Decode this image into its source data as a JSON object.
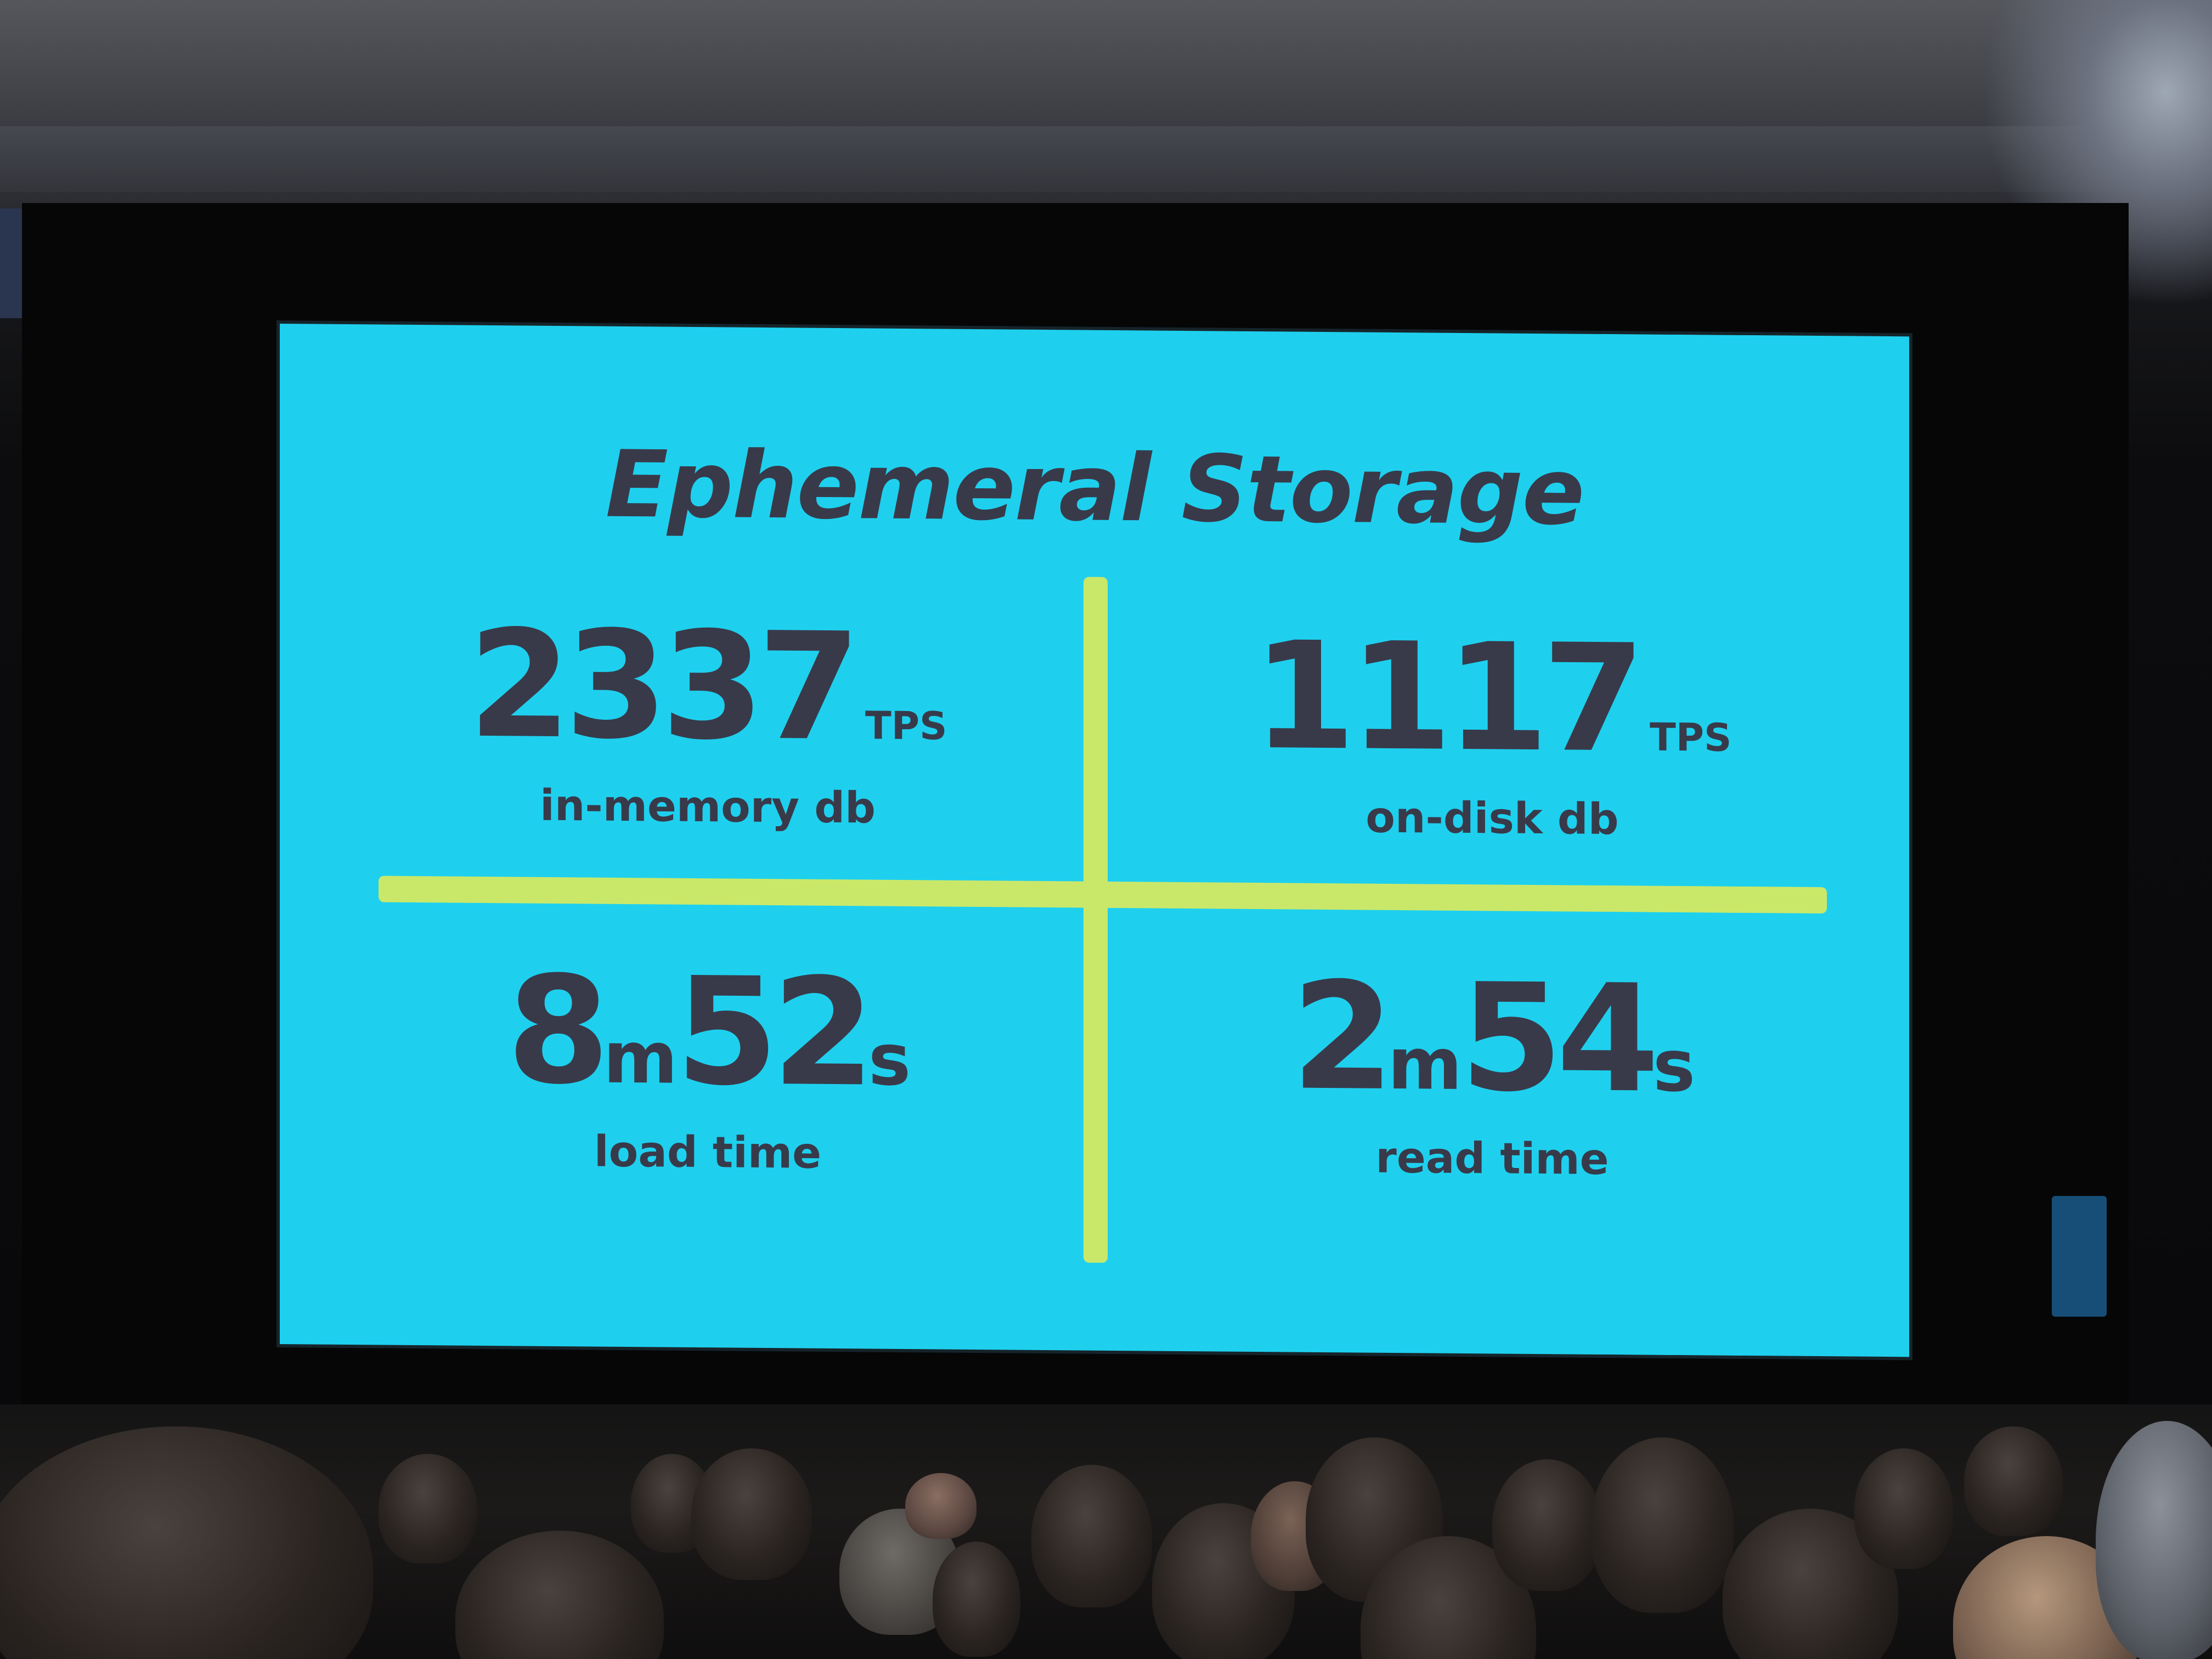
{
  "slide": {
    "title": "Ephemeral Storage",
    "metrics": [
      {
        "id": "in-memory",
        "value": "2337",
        "unit": "TPS",
        "caption": "in-memory db"
      },
      {
        "id": "on-disk",
        "value": "1117",
        "unit": "TPS",
        "caption": "on-disk db"
      },
      {
        "id": "load-time",
        "minutes": "8",
        "minutes_unit": "m",
        "seconds": "52",
        "seconds_unit": "s",
        "caption": "load time"
      },
      {
        "id": "read-time",
        "minutes": "2",
        "minutes_unit": "m",
        "seconds": "54",
        "seconds_unit": "s",
        "caption": "read time"
      }
    ]
  },
  "colors": {
    "slide_background": "#1ed0ee",
    "text": "#383a4a",
    "divider": "#c9e86a"
  }
}
